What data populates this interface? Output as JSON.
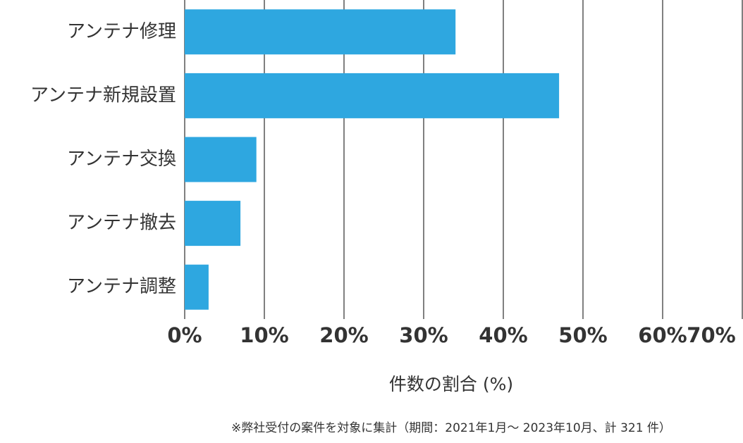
{
  "chart_data": {
    "type": "bar",
    "orientation": "horizontal",
    "categories": [
      "アンテナ修理",
      "アンテナ新規設置",
      "アンテナ交換",
      "アンテナ撤去",
      "アンテナ調整"
    ],
    "values": [
      34,
      47,
      9,
      7,
      3
    ],
    "color": "#2ea7e0",
    "xlim": [
      0,
      70
    ],
    "xticks": [
      {
        "value": 0,
        "label": "0%"
      },
      {
        "value": 10,
        "label": "10%"
      },
      {
        "value": 20,
        "label": "20%"
      },
      {
        "value": 30,
        "label": "30%"
      },
      {
        "value": 40,
        "label": "40%"
      },
      {
        "value": 50,
        "label": "50%"
      },
      {
        "value": 60,
        "label": "60%"
      },
      {
        "value": 70,
        "label": "70%"
      }
    ],
    "grid": true,
    "x_label": "件数の割合 (%)",
    "footnote": "※弊社受付の案件を対象に集計（期間：2021年1月～ 2023年10月、計 321 件）"
  }
}
